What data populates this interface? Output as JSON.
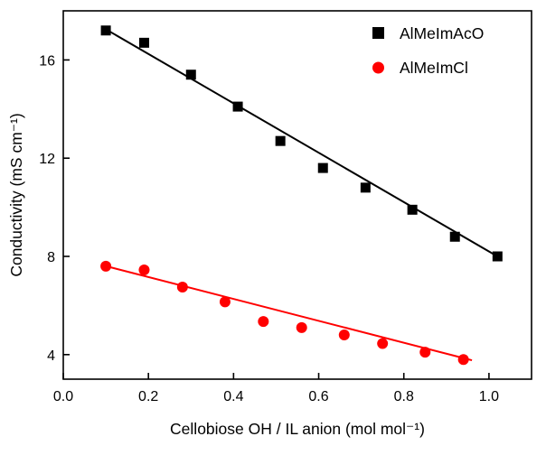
{
  "chart_data": {
    "type": "scatter",
    "title": "",
    "xlabel": "Cellobiose OH / IL anion (mol mol⁻¹)",
    "ylabel": "Conductivity (mS cm⁻¹)",
    "xlim": [
      0.0,
      1.1
    ],
    "ylim": [
      3,
      18
    ],
    "xticks": [
      0.0,
      0.2,
      0.4,
      0.6,
      0.8,
      1.0
    ],
    "xtick_labels": [
      "0.0",
      "0.2",
      "0.4",
      "0.6",
      "0.8",
      "1.0"
    ],
    "yticks": [
      4,
      8,
      12,
      16
    ],
    "ytick_labels": [
      "4",
      "8",
      "12",
      "16"
    ],
    "grid": false,
    "legend_position": "top-right",
    "axis_color": "#000000",
    "series": [
      {
        "name": "AlMeImAcO",
        "marker": "square",
        "color": "#000000",
        "x": [
          0.1,
          0.19,
          0.3,
          0.41,
          0.51,
          0.61,
          0.71,
          0.82,
          0.92,
          1.02
        ],
        "y": [
          17.2,
          16.7,
          15.4,
          14.1,
          12.7,
          11.6,
          10.8,
          9.9,
          8.8,
          8.0
        ],
        "fit_line": {
          "x": [
            0.09,
            1.03
          ],
          "y": [
            17.35,
            7.9
          ]
        }
      },
      {
        "name": "AlMeImCl",
        "marker": "circle",
        "color": "#ff0000",
        "x": [
          0.1,
          0.19,
          0.28,
          0.38,
          0.47,
          0.56,
          0.66,
          0.75,
          0.85,
          0.94
        ],
        "y": [
          7.6,
          7.45,
          6.75,
          6.15,
          5.35,
          5.1,
          4.8,
          4.45,
          4.1,
          3.8
        ],
        "fit_line": {
          "x": [
            0.09,
            0.96
          ],
          "y": [
            7.65,
            3.77
          ]
        }
      }
    ]
  }
}
